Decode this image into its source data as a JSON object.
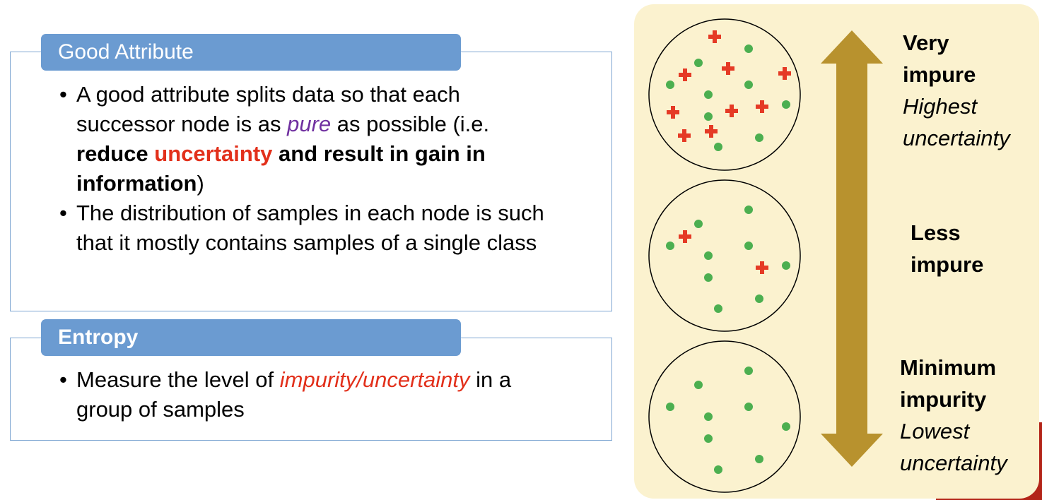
{
  "good_attribute": {
    "heading": "Good Attribute",
    "bullet1": {
      "pre": "A good attribute splits data so that each successor node is as ",
      "pure": "pure",
      "mid": " as possible (i.e. ",
      "reduce": "reduce",
      "sp": " ",
      "uncertainty": "uncertainty",
      "rest": " and result in gain in information",
      "close": ")"
    },
    "bullet2": "The distribution of samples in each node is such that it mostly contains samples of a single class"
  },
  "entropy": {
    "heading": "Entropy",
    "bullet": {
      "pre": "Measure the level of ",
      "highlight": "impurity/uncertainty",
      "post": " in a group of samples"
    }
  },
  "labels": {
    "very_impure_1": "Very",
    "very_impure_2": "impure",
    "highest_1": "Highest",
    "highest_2": "uncertainty",
    "less_1": "Less",
    "less_2": "impure",
    "minimum_1": "Minimum",
    "minimum_2": "impurity",
    "lowest_1": "Lowest",
    "lowest_2": "uncertainty"
  },
  "colors": {
    "tab": "#6b9bd1",
    "arrow": "#b8922e",
    "panel": "#fbf2cf",
    "green_dot": "#4caf50",
    "red_cross": "#e53a25"
  }
}
